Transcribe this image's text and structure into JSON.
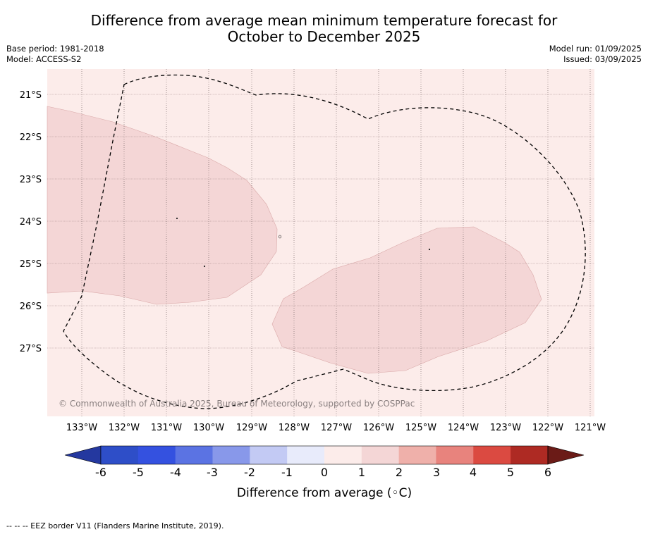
{
  "title_line1": "Difference from average mean minimum temperature forecast for",
  "title_line2": "October to December 2025",
  "base_period": "Base period: 1981-2018",
  "model": "Model: ACCESS-S2",
  "model_run": "Model run: 01/09/2025",
  "issued": "Issued: 03/09/2025",
  "copyright": "© Commonwealth of Australia 2025, Bureau of Meteorology, supported by COSPPac",
  "lat_labels": [
    "21°S",
    "22°S",
    "23°S",
    "24°S",
    "25°S",
    "26°S",
    "27°S"
  ],
  "lon_labels": [
    "133°W",
    "132°W",
    "131°W",
    "130°W",
    "129°W",
    "128°W",
    "127°W",
    "126°W",
    "125°W",
    "124°W",
    "123°W",
    "122°W",
    "121°W"
  ],
  "colorbar": {
    "title": "Difference from average (◦C)",
    "ticks": [
      "-6",
      "-5",
      "-4",
      "-3",
      "-2",
      "-1",
      "0",
      "1",
      "2",
      "3",
      "4",
      "5",
      "6"
    ],
    "colors": [
      "#24389f",
      "#2e4ec8",
      "#3451e0",
      "#5b73e3",
      "#8898ea",
      "#c3caf4",
      "#e8ebfb",
      "#fcecea",
      "#f4d6d6",
      "#efb0aa",
      "#e8837d",
      "#db4a41",
      "#ae2a23",
      "#6b1b17"
    ]
  },
  "legend": {
    "fill_background": "#fcecea",
    "fill_anomaly": "#f4d6d6",
    "eez_line": "#000000"
  },
  "footer": "--  --  -- EEZ border V11 (Flanders Marine Institute, 2019)."
}
